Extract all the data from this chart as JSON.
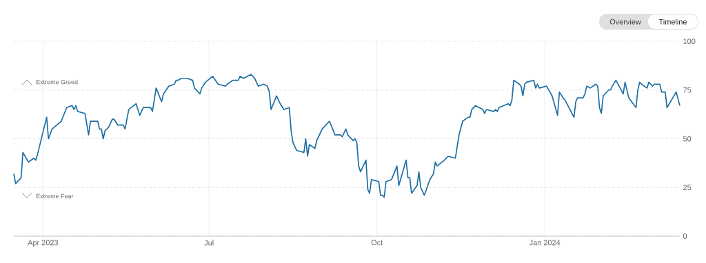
{
  "chart_data": {
    "type": "line",
    "color": "#1d6fa3",
    "grid": true,
    "marker": "none",
    "line_style": "solid",
    "xlim": [
      "2023-03-16",
      "2024-03-15"
    ],
    "ylim": [
      0,
      100
    ],
    "xticks": [
      {
        "value": "2023-04-01",
        "label": "Apr 2023"
      },
      {
        "value": "2023-07-01",
        "label": "Jul"
      },
      {
        "value": "2023-10-01",
        "label": "Oct"
      },
      {
        "value": "2024-01-01",
        "label": "Jan 2024"
      }
    ],
    "yticks": [
      0,
      25,
      50,
      75,
      100
    ],
    "annotations": [
      "Extreme Greed",
      "Extreme Fear",
      "Overview",
      "Timeline"
    ],
    "x": [
      "2023-03-16",
      "2023-03-17",
      "2023-03-20",
      "2023-03-21",
      "2023-03-24",
      "2023-03-27",
      "2023-03-28",
      "2023-03-29",
      "2023-04-03",
      "2023-04-04",
      "2023-04-06",
      "2023-04-11",
      "2023-04-14",
      "2023-04-17",
      "2023-04-18",
      "2023-04-19",
      "2023-04-20",
      "2023-04-24",
      "2023-04-26",
      "2023-04-27",
      "2023-04-29",
      "2023-05-01",
      "2023-05-02",
      "2023-05-03",
      "2023-05-04",
      "2023-05-05",
      "2023-05-07",
      "2023-05-09",
      "2023-05-10",
      "2023-05-12",
      "2023-05-15",
      "2023-05-16",
      "2023-05-18",
      "2023-05-22",
      "2023-05-24",
      "2023-05-26",
      "2023-05-30",
      "2023-05-31",
      "2023-06-02",
      "2023-06-05",
      "2023-06-06",
      "2023-06-09",
      "2023-06-12",
      "2023-06-13",
      "2023-06-14",
      "2023-06-16",
      "2023-06-19",
      "2023-06-22",
      "2023-06-23",
      "2023-06-26",
      "2023-06-27",
      "2023-06-29",
      "2023-07-03",
      "2023-07-06",
      "2023-07-10",
      "2023-07-11",
      "2023-07-14",
      "2023-07-17",
      "2023-07-18",
      "2023-07-20",
      "2023-07-24",
      "2023-07-26",
      "2023-07-28",
      "2023-07-31",
      "2023-08-02",
      "2023-08-03",
      "2023-08-04",
      "2023-08-07",
      "2023-08-09",
      "2023-08-11",
      "2023-08-14",
      "2023-08-15",
      "2023-08-16",
      "2023-08-18",
      "2023-08-22",
      "2023-08-23",
      "2023-08-24",
      "2023-08-25",
      "2023-08-28",
      "2023-08-29",
      "2023-09-01",
      "2023-09-05",
      "2023-09-08",
      "2023-09-11",
      "2023-09-12",
      "2023-09-14",
      "2023-09-15",
      "2023-09-18",
      "2023-09-19",
      "2023-09-20",
      "2023-09-21",
      "2023-09-22",
      "2023-09-25",
      "2023-09-26",
      "2023-09-27",
      "2023-09-28",
      "2023-10-02",
      "2023-10-03",
      "2023-10-04",
      "2023-10-05",
      "2023-10-06",
      "2023-10-09",
      "2023-10-12",
      "2023-10-13",
      "2023-10-17",
      "2023-10-18",
      "2023-10-19",
      "2023-10-20",
      "2023-10-23",
      "2023-10-24",
      "2023-10-25",
      "2023-10-27",
      "2023-10-30",
      "2023-11-01",
      "2023-11-02",
      "2023-11-03",
      "2023-11-07",
      "2023-11-09",
      "2023-11-13",
      "2023-11-15",
      "2023-11-17",
      "2023-11-20",
      "2023-11-21",
      "2023-11-22",
      "2023-11-24",
      "2023-11-28",
      "2023-11-29",
      "2023-11-30",
      "2023-12-04",
      "2023-12-05",
      "2023-12-06",
      "2023-12-07",
      "2023-12-12",
      "2023-12-13",
      "2023-12-14",
      "2023-12-15",
      "2023-12-18",
      "2023-12-19",
      "2023-12-20",
      "2023-12-21",
      "2023-12-22",
      "2023-12-26",
      "2023-12-27",
      "2023-12-28",
      "2023-12-29",
      "2024-01-02",
      "2024-01-05",
      "2024-01-08",
      "2024-01-09",
      "2024-01-11",
      "2024-01-12",
      "2024-01-17",
      "2024-01-18",
      "2024-01-19",
      "2024-01-22",
      "2024-01-23",
      "2024-01-24",
      "2024-01-26",
      "2024-01-29",
      "2024-01-30",
      "2024-01-31",
      "2024-02-01",
      "2024-02-02",
      "2024-02-05",
      "2024-02-06",
      "2024-02-07",
      "2024-02-09",
      "2024-02-13",
      "2024-02-14",
      "2024-02-16",
      "2024-02-20",
      "2024-02-21",
      "2024-02-22",
      "2024-02-23",
      "2024-02-26",
      "2024-02-27",
      "2024-02-29",
      "2024-03-01",
      "2024-03-04",
      "2024-03-05",
      "2024-03-07",
      "2024-03-08",
      "2024-03-13",
      "2024-03-15"
    ],
    "values": [
      32,
      27,
      30,
      43,
      38,
      40,
      39,
      42,
      61,
      50,
      55,
      59,
      66,
      67,
      65,
      67,
      64,
      63,
      52,
      59,
      59,
      59,
      55,
      55,
      50,
      54,
      56,
      60,
      60,
      57,
      57,
      55,
      65,
      68,
      62,
      66,
      66,
      64,
      76,
      69,
      73,
      77,
      78,
      80,
      80,
      81,
      81,
      80,
      76,
      73,
      76,
      79,
      82,
      78,
      77,
      78,
      80,
      80,
      82,
      81,
      83,
      81,
      77,
      78,
      77,
      74,
      65,
      72,
      68,
      65,
      66,
      54,
      48,
      44,
      43,
      50,
      41,
      47,
      45,
      49,
      55,
      59,
      52,
      52,
      51,
      55,
      52,
      49,
      50,
      48,
      36,
      33,
      39,
      24,
      22,
      29,
      28,
      21,
      21,
      20,
      28,
      29,
      36,
      26,
      39,
      30,
      30,
      22,
      26,
      33,
      25,
      21,
      29,
      32,
      38,
      36,
      39,
      41,
      40,
      52,
      59,
      61,
      61,
      65,
      67,
      65,
      63,
      65,
      64,
      65,
      64,
      66,
      68,
      67,
      70,
      80,
      78,
      77,
      72,
      78,
      79,
      80,
      76,
      78,
      76,
      77,
      72,
      62,
      74,
      71,
      70,
      61,
      69,
      71,
      71,
      73,
      77,
      76,
      78,
      77,
      66,
      63,
      72,
      75,
      75,
      77,
      80,
      73,
      79,
      71,
      66,
      75,
      79,
      78,
      76,
      79,
      77,
      78,
      78,
      74,
      74,
      66,
      74,
      67
    ]
  }
}
